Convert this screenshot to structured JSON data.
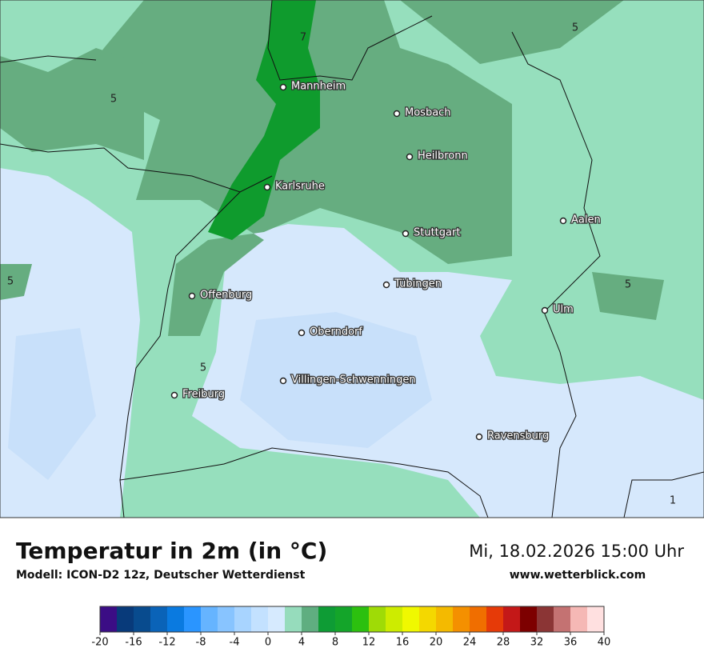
{
  "header": {
    "title": "Temperatur in 2m (in °C)",
    "model": "Modell: ICON-D2 12z, Deutscher Wetterdienst",
    "date": "Mi, 18.02.2026 15:00 Uhr",
    "website": "www.wetterblick.com"
  },
  "map": {
    "cities": [
      "Mannheim",
      "Mosbach",
      "Heilbronn",
      "Karlsruhe",
      "Stuttgart",
      "Aalen",
      "Tübingen",
      "Offenburg",
      "Ulm",
      "Oberndorf",
      "Villingen-Schwenningen",
      "Freiburg",
      "Ravensburg"
    ],
    "contour_labels": [
      "7",
      "5",
      "5",
      "5",
      "5",
      "5",
      "1"
    ]
  },
  "legend": {
    "range": [
      -20,
      40
    ],
    "ticks": [
      -20,
      -16,
      -12,
      -8,
      -4,
      0,
      4,
      8,
      12,
      16,
      20,
      24,
      28,
      32,
      36,
      40
    ],
    "colors": [
      "#3b0d85",
      "#083a7a",
      "#084b8e",
      "#0a63b8",
      "#0a7ae0",
      "#2a95ff",
      "#66b4ff",
      "#88c4ff",
      "#a8d4ff",
      "#c3e1ff",
      "#d6eafe",
      "#96dcbc",
      "#5fae80",
      "#0e9c35",
      "#14a52a",
      "#2cc00f",
      "#9fdb06",
      "#cdec00",
      "#f0f800",
      "#f4d800",
      "#f4ba00",
      "#f49000",
      "#f06e00",
      "#e63a08",
      "#c41818",
      "#7d0000",
      "#8b3535",
      "#c47272",
      "#f5b8b5",
      "#ffe0e0"
    ]
  }
}
